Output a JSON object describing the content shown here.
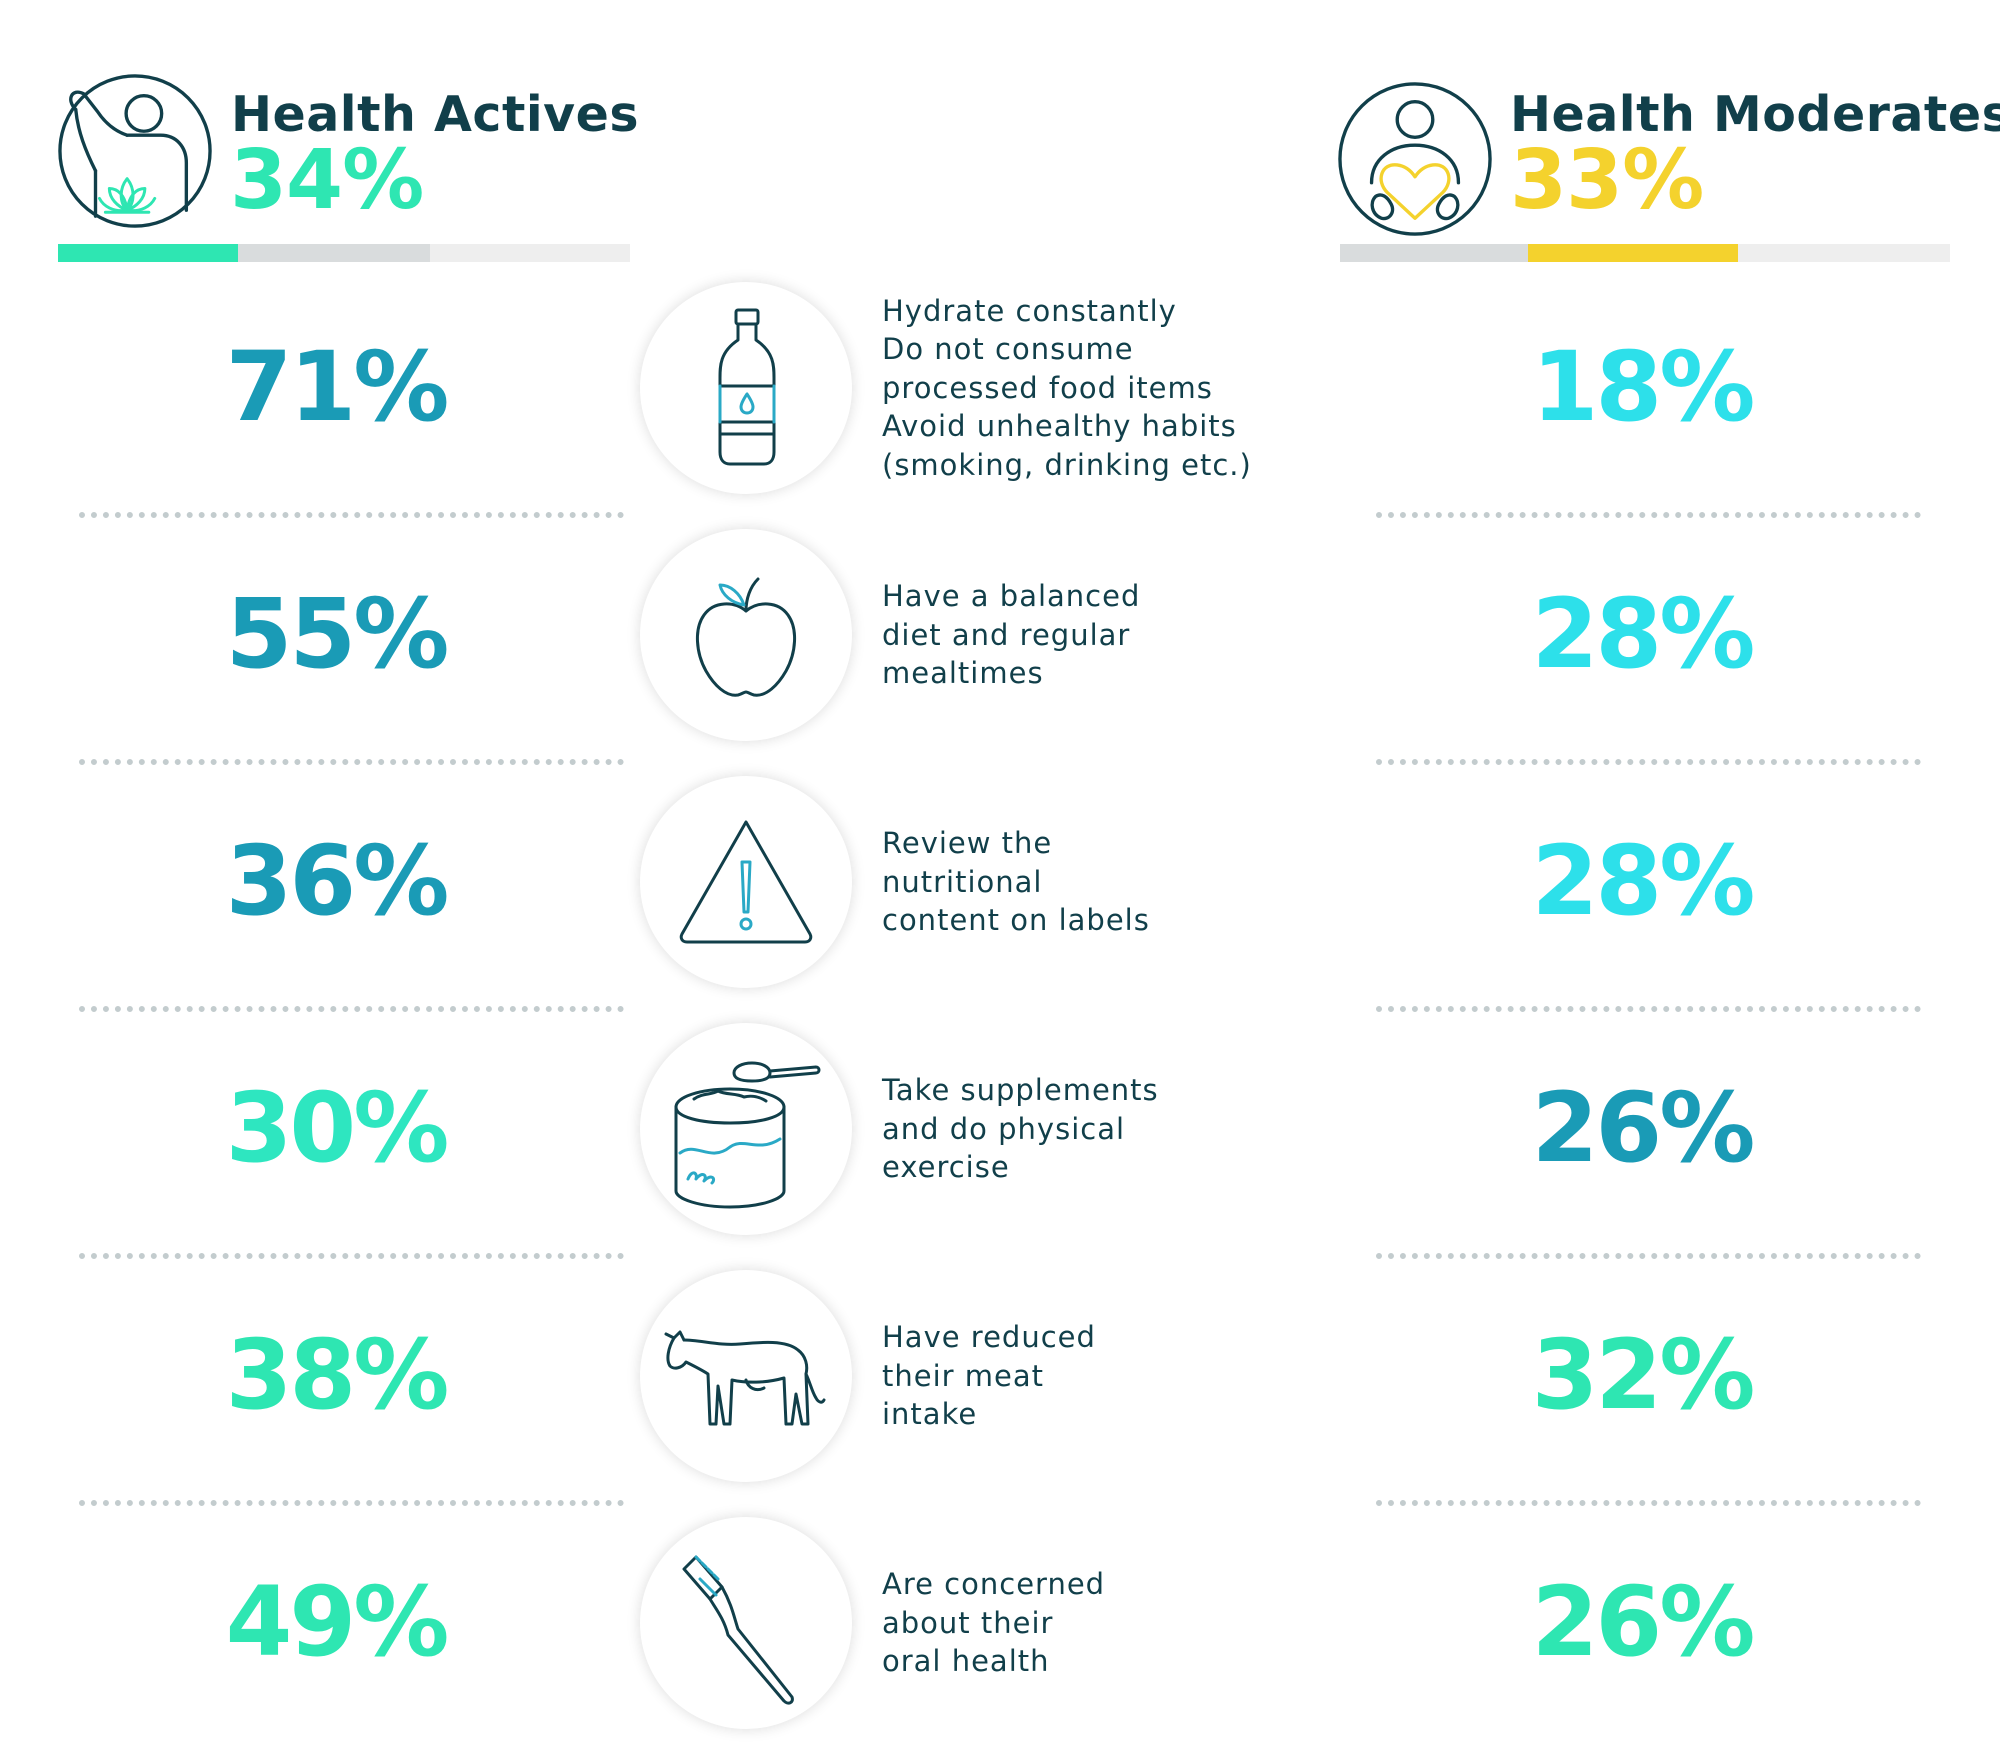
{
  "colors": {
    "dark_teal": "#113f4a",
    "mint": "#2ee6b2",
    "yellow": "#f4d22d",
    "bar_grey": "#d9dcdd",
    "bar_light": "#eeeeee"
  },
  "left_group": {
    "title": "Health Actives",
    "percent": "34%",
    "color": "#2ee6b2",
    "icon": "raised-hand-lotus-person-icon"
  },
  "right_group": {
    "title": "Health Moderates",
    "percent": "33%",
    "color": "#f4d22d",
    "icon": "person-holding-heart-icon"
  },
  "rows": [
    {
      "icon": "water-bottle-icon",
      "lines": [
        "Hydrate constantly",
        "Do not consume",
        "processed food items",
        "Avoid unhealthy habits",
        "(smoking, drinking etc.)"
      ],
      "left": "71%",
      "left_color": "#1a9bb6",
      "right": "18%",
      "right_color": "#2de0ea"
    },
    {
      "icon": "apple-icon",
      "lines": [
        "Have a balanced",
        "diet and regular",
        "mealtimes"
      ],
      "left": "55%",
      "left_color": "#1a9bb6",
      "right": "28%",
      "right_color": "#2de0ea"
    },
    {
      "icon": "warning-triangle-icon",
      "lines": [
        "Review the",
        "nutritional",
        "content on labels"
      ],
      "left": "36%",
      "left_color": "#1a9bb6",
      "right": "28%",
      "right_color": "#2de0ea"
    },
    {
      "icon": "supplement-powder-can-icon",
      "lines": [
        "Take supplements",
        "and do physical",
        "exercise"
      ],
      "left": "30%",
      "left_color": "#2ee6c0",
      "right": "26%",
      "right_color": "#1a9bb6"
    },
    {
      "icon": "cow-icon",
      "lines": [
        "Have reduced",
        "their meat",
        "intake"
      ],
      "left": "38%",
      "left_color": "#2ee6b2",
      "right": "32%",
      "right_color": "#2ee6b2"
    },
    {
      "icon": "toothbrush-icon",
      "lines": [
        "Are concerned",
        "about their",
        "oral health"
      ],
      "left": "49%",
      "left_color": "#2ee6b2",
      "right": "26%",
      "right_color": "#2ee6b2"
    }
  ]
}
